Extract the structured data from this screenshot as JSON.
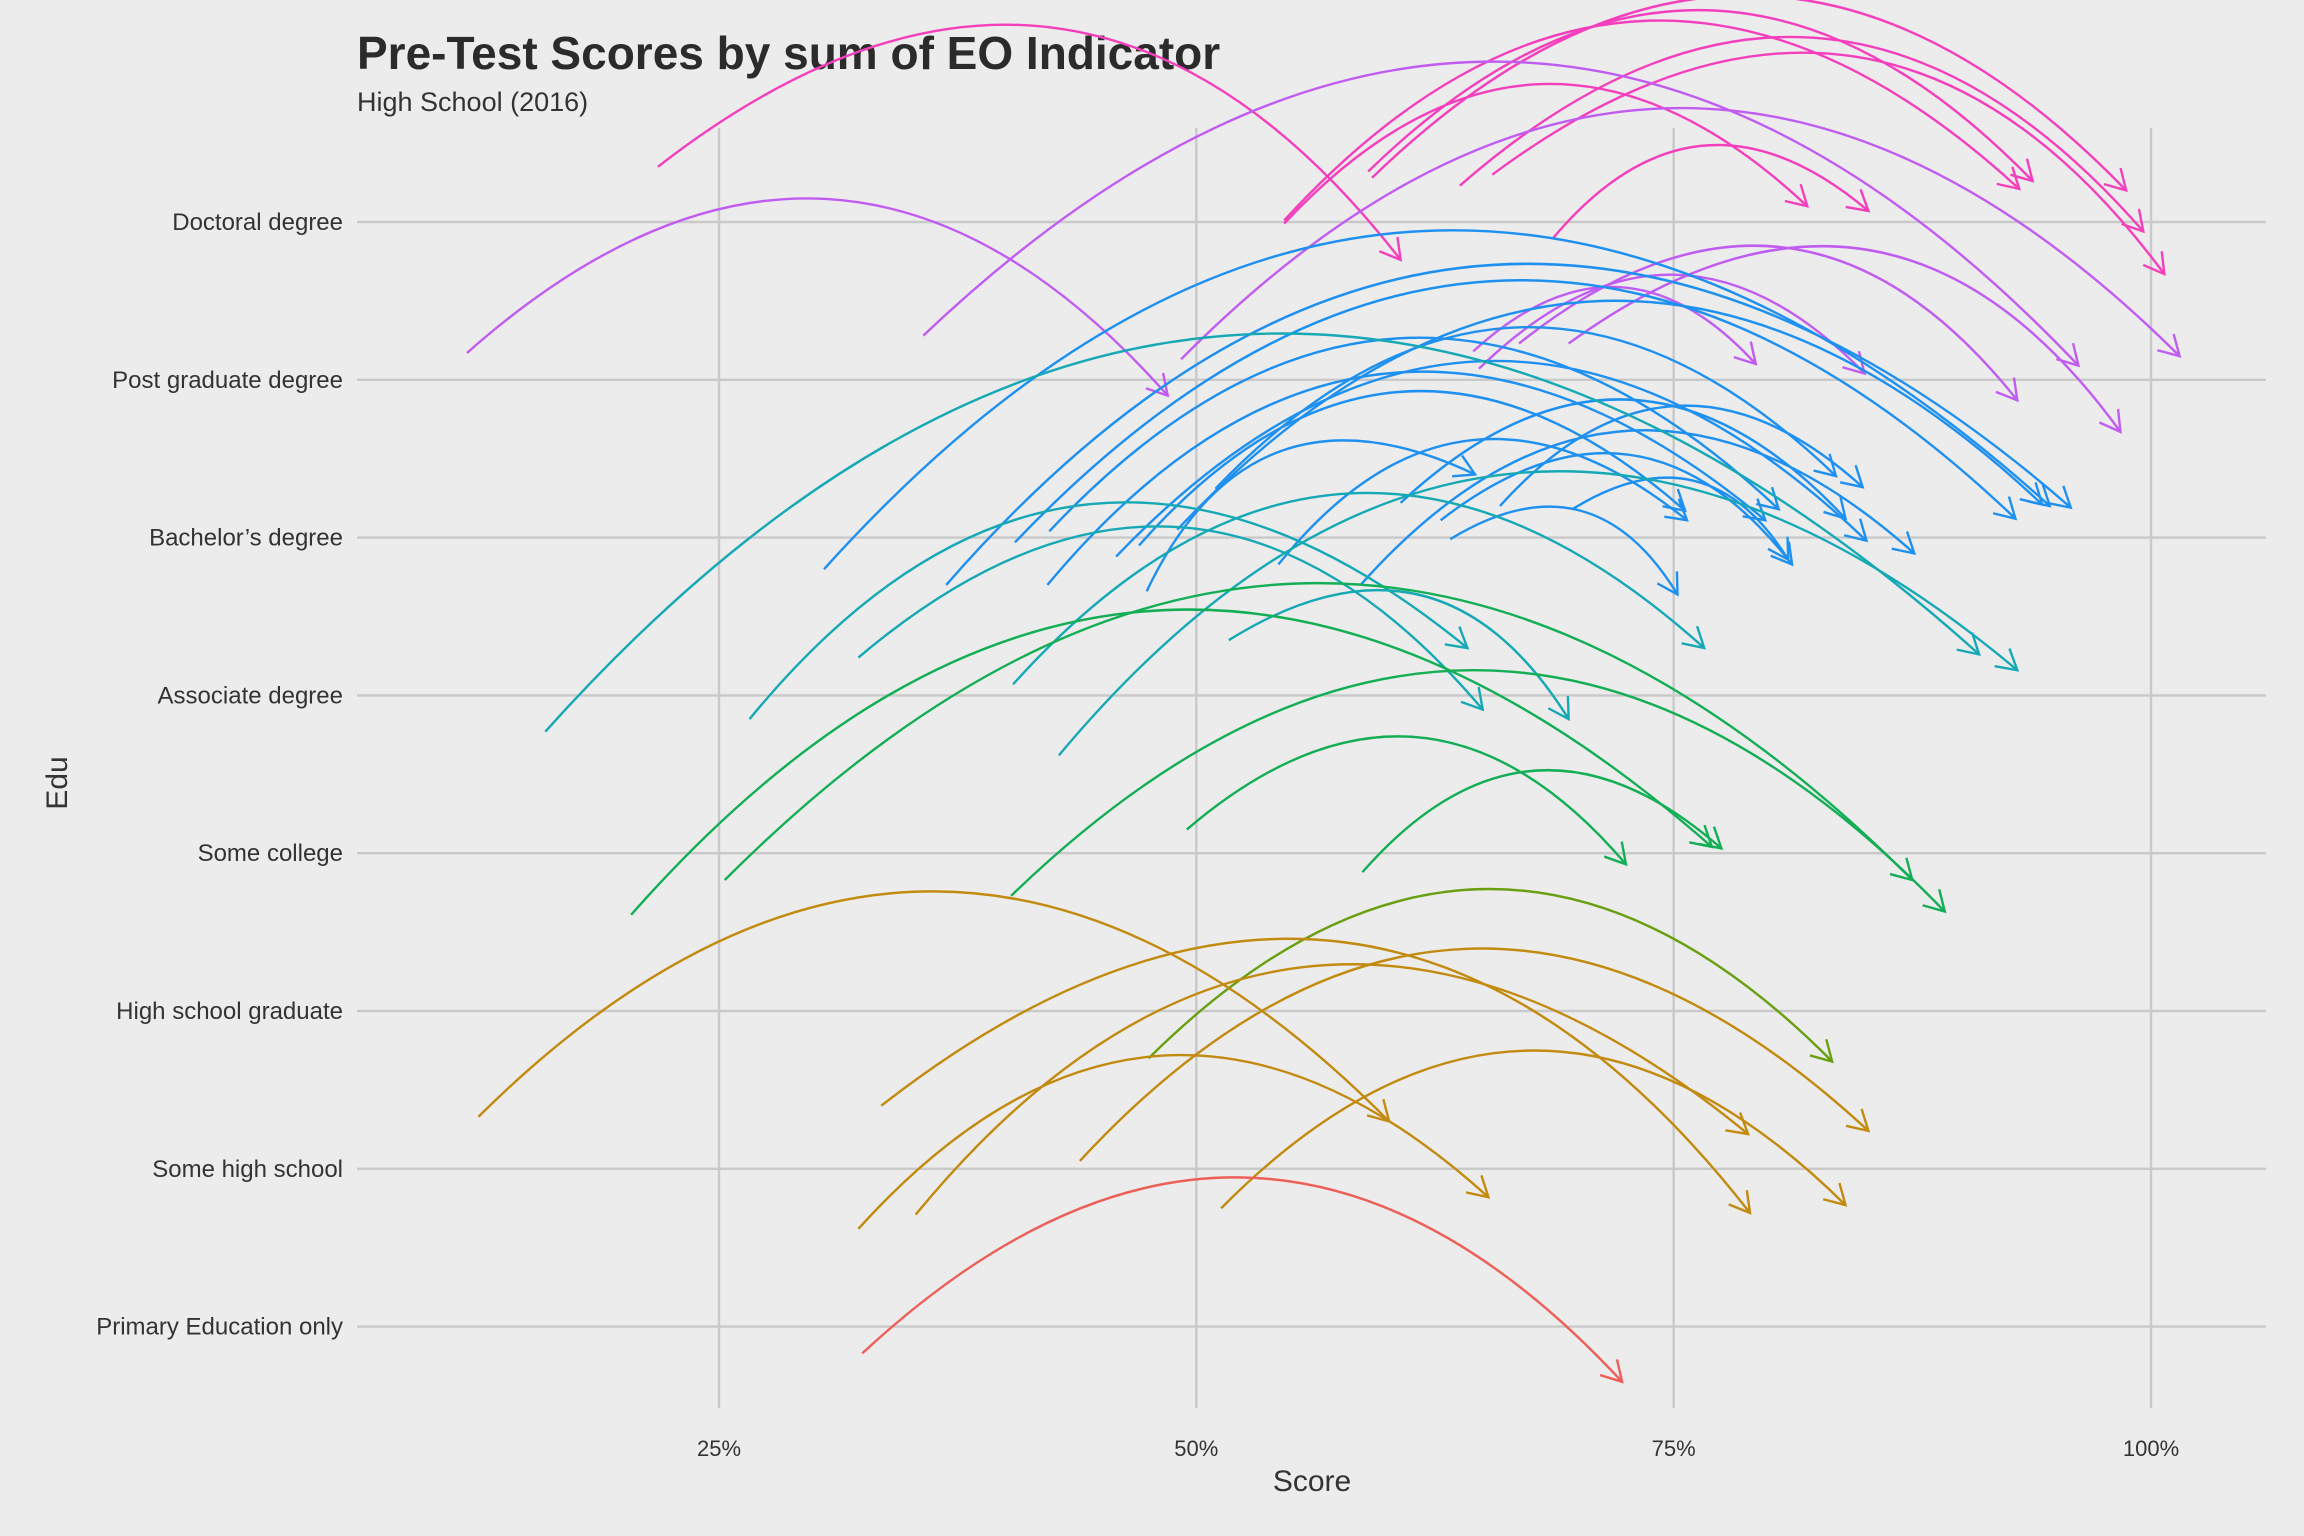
{
  "chart_data": {
    "type": "curved-arrow",
    "title": "Pre-Test Scores by sum of EO Indicator",
    "subtitle": "High School (2016)",
    "xlabel": "Score",
    "ylabel": "Edu",
    "xlim": [
      6,
      108
    ],
    "x_ticks": [
      25,
      50,
      75,
      100
    ],
    "x_tick_labels": [
      "25%",
      "50%",
      "75%",
      "100%"
    ],
    "grid": true,
    "categories": [
      "Doctoral degree",
      "Post graduate degree",
      "Bachelor’s degree",
      "Associate degree",
      "Some college",
      "High school graduate",
      "Some high school",
      "Primary Education only"
    ],
    "series": [
      {
        "color": "#f43fbd",
        "arrows": [
          {
            "x0": 21.8,
            "y0": 0.35,
            "x1": 60.7,
            "y1": -0.24
          },
          {
            "x0": 59.0,
            "y0": 0.32,
            "x1": 93.8,
            "y1": 0.26
          },
          {
            "x0": 59.2,
            "y0": 0.28,
            "x1": 98.7,
            "y1": 0.2
          },
          {
            "x0": 63.8,
            "y0": 0.23,
            "x1": 99.6,
            "y1": -0.06
          },
          {
            "x0": 65.5,
            "y0": 0.3,
            "x1": 100.7,
            "y1": -0.33
          },
          {
            "x0": 54.6,
            "y0": -0.01,
            "x1": 82.0,
            "y1": 0.1
          },
          {
            "x0": 54.6,
            "y0": 0.01,
            "x1": 93.1,
            "y1": 0.21
          },
          {
            "x0": 68.7,
            "y0": -0.1,
            "x1": 85.2,
            "y1": 0.07
          }
        ]
      },
      {
        "color": "#c15cf1",
        "arrows": [
          {
            "x0": 11.8,
            "y0": 0.17,
            "x1": 48.5,
            "y1": -0.1
          },
          {
            "x0": 35.7,
            "y0": 0.28,
            "x1": 96.2,
            "y1": 0.09
          },
          {
            "x0": 49.2,
            "y0": 0.13,
            "x1": 101.5,
            "y1": 0.15
          },
          {
            "x0": 64.5,
            "y0": 0.18,
            "x1": 79.3,
            "y1": 0.1
          },
          {
            "x0": 64.8,
            "y0": 0.07,
            "x1": 85.0,
            "y1": 0.04
          },
          {
            "x0": 66.9,
            "y0": 0.23,
            "x1": 93.0,
            "y1": -0.13
          },
          {
            "x0": 69.5,
            "y0": 0.23,
            "x1": 98.4,
            "y1": -0.33
          }
        ]
      },
      {
        "color": "#1e90ef",
        "arrows": [
          {
            "x0": 30.5,
            "y0": -0.2,
            "x1": 94.7,
            "y1": 0.2
          },
          {
            "x0": 36.9,
            "y0": -0.3,
            "x1": 95.8,
            "y1": 0.19
          },
          {
            "x0": 40.5,
            "y0": -0.03,
            "x1": 92.9,
            "y1": 0.12
          },
          {
            "x0": 42.2,
            "y0": -0.3,
            "x1": 79.8,
            "y1": 0.11
          },
          {
            "x0": 42.3,
            "y0": 0.04,
            "x1": 80.5,
            "y1": 0.18
          },
          {
            "x0": 45.8,
            "y0": -0.12,
            "x1": 85.1,
            "y1": -0.02
          },
          {
            "x0": 47.0,
            "y0": -0.05,
            "x1": 75.6,
            "y1": 0.17
          },
          {
            "x0": 47.4,
            "y0": -0.34,
            "x1": 64.6,
            "y1": 0.4
          },
          {
            "x0": 49.0,
            "y0": 0.05,
            "x1": 94.3,
            "y1": 0.21
          },
          {
            "x0": 51.0,
            "y0": 0.31,
            "x1": 83.5,
            "y1": 0.39
          },
          {
            "x0": 54.3,
            "y0": -0.17,
            "x1": 75.7,
            "y1": 0.11
          },
          {
            "x0": 58.6,
            "y0": -0.3,
            "x1": 87.6,
            "y1": -0.1
          },
          {
            "x0": 60.7,
            "y0": 0.22,
            "x1": 84.0,
            "y1": 0.12
          },
          {
            "x0": 62.8,
            "y0": 0.11,
            "x1": 81.2,
            "y1": -0.17
          },
          {
            "x0": 63.3,
            "y0": -0.01,
            "x1": 75.2,
            "y1": -0.36
          },
          {
            "x0": 65.9,
            "y0": 0.2,
            "x1": 84.9,
            "y1": 0.32
          },
          {
            "x0": 69.7,
            "y0": 0.18,
            "x1": 81.0,
            "y1": -0.14
          }
        ]
      },
      {
        "color": "#16a9b5",
        "arrows": [
          {
            "x0": 15.9,
            "y0": -0.23,
            "x1": 91.0,
            "y1": 0.26
          },
          {
            "x0": 26.6,
            "y0": -0.15,
            "x1": 64.2,
            "y1": 0.3
          },
          {
            "x0": 32.3,
            "y0": 0.24,
            "x1": 65.0,
            "y1": -0.09
          },
          {
            "x0": 40.4,
            "y0": 0.07,
            "x1": 76.6,
            "y1": 0.3
          },
          {
            "x0": 42.8,
            "y0": -0.38,
            "x1": 93.0,
            "y1": 0.16
          },
          {
            "x0": 51.7,
            "y0": 0.35,
            "x1": 69.5,
            "y1": -0.15
          }
        ]
      },
      {
        "color": "#13ae55",
        "arrows": [
          {
            "x0": 20.4,
            "y0": -0.39,
            "x1": 77.0,
            "y1": 0.04
          },
          {
            "x0": 25.3,
            "y0": -0.17,
            "x1": 87.5,
            "y1": -0.17
          },
          {
            "x0": 40.3,
            "y0": -0.27,
            "x1": 89.2,
            "y1": -0.37
          },
          {
            "x0": 49.5,
            "y0": 0.15,
            "x1": 72.5,
            "y1": -0.07
          },
          {
            "x0": 58.7,
            "y0": -0.12,
            "x1": 77.5,
            "y1": 0.03
          }
        ]
      },
      {
        "color": "#68a011",
        "arrows": [
          {
            "x0": 47.5,
            "y0": -0.3,
            "x1": 83.3,
            "y1": -0.32
          }
        ]
      },
      {
        "color": "#c28a0f",
        "arrows": [
          {
            "x0": 12.4,
            "y0": 0.33,
            "x1": 60.1,
            "y1": 0.3
          },
          {
            "x0": 33.5,
            "y0": 0.4,
            "x1": 79.0,
            "y1": -0.28
          },
          {
            "x0": 32.3,
            "y0": -0.38,
            "x1": 65.3,
            "y1": -0.18
          },
          {
            "x0": 35.3,
            "y0": -0.29,
            "x1": 78.9,
            "y1": 0.22
          },
          {
            "x0": 43.9,
            "y0": 0.05,
            "x1": 85.2,
            "y1": 0.24
          },
          {
            "x0": 51.3,
            "y0": -0.25,
            "x1": 84.0,
            "y1": -0.23
          }
        ]
      },
      {
        "color": "#ed5f59",
        "arrows": [
          {
            "x0": 32.5,
            "y0": -0.17,
            "x1": 72.3,
            "y1": -0.35
          }
        ]
      }
    ]
  }
}
